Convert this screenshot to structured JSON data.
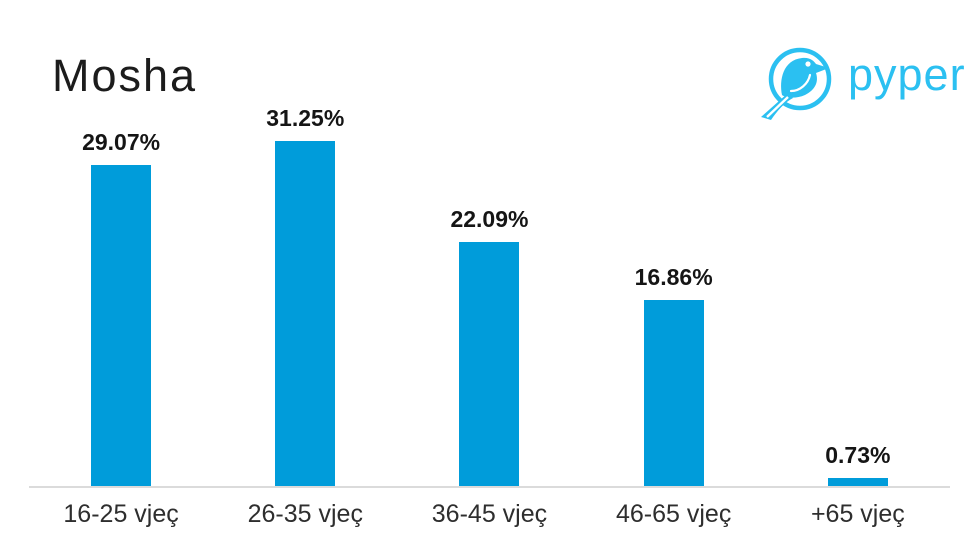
{
  "header": {
    "title": "Mosha",
    "logo": {
      "text": "pyper",
      "icon": "bird-in-circle-icon",
      "color": "#2bc0f1"
    }
  },
  "chart_data": {
    "type": "bar",
    "title": "Mosha",
    "categories": [
      "16-25 vjeç",
      "26-35 vjeç",
      "36-45 vjeç",
      "46-65 vjeç",
      "+65 vjeç"
    ],
    "values": [
      29.07,
      31.25,
      22.09,
      16.86,
      0.73
    ],
    "data_labels": [
      "29.07%",
      "31.25%",
      "22.09%",
      "16.86%",
      "0.73%"
    ],
    "xlabel": "",
    "ylabel": "",
    "ylim": [
      0,
      35
    ],
    "grid": false,
    "legend": false,
    "data_labels_position": "above-bar",
    "bar_color": "#009cda",
    "axis_line_color": "#dbdbdb",
    "value_label_color": "#151515",
    "category_label_color": "#2e2e2e"
  }
}
